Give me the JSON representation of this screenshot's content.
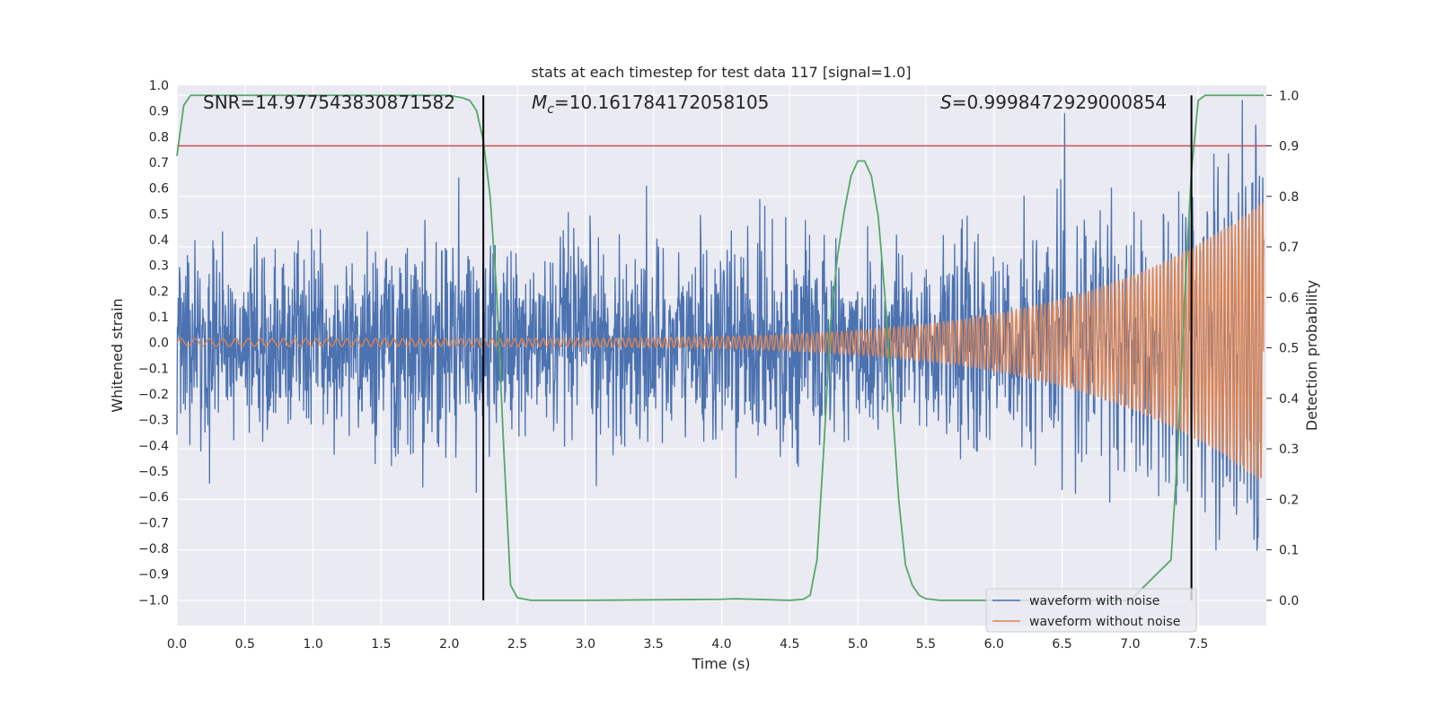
{
  "chart_data": {
    "type": "line",
    "title": "stats at each timestep for test data 117 [signal=1.0]",
    "xlabel": "Time (s)",
    "ylabel": "Whitened strain",
    "y2label": "Detection probability",
    "xlim": [
      0.0,
      8.0
    ],
    "ylim": [
      -1.1,
      1.0
    ],
    "y2lim": [
      -0.05,
      1.02
    ],
    "x_ticks": [
      "0.0",
      "0.5",
      "1.0",
      "1.5",
      "2.0",
      "2.5",
      "3.0",
      "3.5",
      "4.0",
      "4.5",
      "5.0",
      "5.5",
      "6.0",
      "6.5",
      "7.0",
      "7.5"
    ],
    "y_ticks": [
      "1.0",
      "0.9",
      "0.8",
      "0.7",
      "0.6",
      "0.5",
      "0.4",
      "0.3",
      "0.2",
      "0.1",
      "0.0",
      "−0.1",
      "−0.2",
      "−0.3",
      "−0.4",
      "−0.5",
      "−0.6",
      "−0.7",
      "−0.8",
      "−0.9",
      "−1.0"
    ],
    "y2_ticks": [
      "1.0",
      "0.9",
      "0.8",
      "0.7",
      "0.6",
      "0.5",
      "0.4",
      "0.3",
      "0.2",
      "0.1",
      "0.0"
    ],
    "annotations": {
      "snr": "SNR=14.977543830871582",
      "mc_symbol": "M",
      "mc_sub": "c",
      "mc_value": "=10.161784172058105",
      "s_symbol": "S",
      "s_value": "=0.9998472929000854"
    },
    "threshold_y2": 0.9,
    "vlines_x": [
      2.25,
      7.45
    ],
    "series": [
      {
        "name": "waveform with noise",
        "color": "#4c72b0",
        "kind": "noise",
        "amplitude_envelope": 0.95
      },
      {
        "name": "waveform without noise",
        "color": "#dd8452",
        "kind": "chirp",
        "start_amplitude": 0.015,
        "end_amplitude": 0.55,
        "start_freq_hz": 9,
        "end_freq_hz": 40
      },
      {
        "name": "Detection probability",
        "color": "#55a868",
        "axis": "right",
        "x": [
          0.0,
          0.05,
          0.1,
          0.15,
          0.5,
          1.0,
          1.5,
          2.0,
          2.1,
          2.15,
          2.2,
          2.25,
          2.3,
          2.35,
          2.4,
          2.45,
          2.5,
          2.6,
          3.0,
          3.5,
          4.0,
          4.1,
          4.5,
          4.6,
          4.65,
          4.7,
          4.75,
          4.8,
          4.85,
          4.9,
          4.95,
          5.0,
          5.05,
          5.1,
          5.15,
          5.2,
          5.25,
          5.3,
          5.35,
          5.4,
          5.45,
          5.5,
          5.6,
          5.7,
          5.8,
          6.0,
          6.5,
          7.0,
          7.3,
          7.35,
          7.4,
          7.45,
          7.5,
          7.55,
          7.6,
          8.0
        ],
        "y": [
          0.88,
          0.98,
          1.0,
          1.0,
          1.0,
          1.0,
          1.0,
          1.0,
          0.995,
          0.99,
          0.97,
          0.91,
          0.8,
          0.6,
          0.3,
          0.03,
          0.005,
          0.0,
          0.0,
          0.001,
          0.002,
          0.003,
          0.0,
          0.002,
          0.01,
          0.08,
          0.3,
          0.55,
          0.68,
          0.77,
          0.84,
          0.87,
          0.87,
          0.84,
          0.76,
          0.6,
          0.4,
          0.2,
          0.07,
          0.03,
          0.01,
          0.003,
          0.0,
          0.0,
          0.0,
          0.0,
          0.0,
          0.0,
          0.08,
          0.3,
          0.6,
          0.85,
          0.99,
          1.0,
          1.0,
          1.0
        ]
      }
    ],
    "legend": {
      "placement": "lower-right",
      "entries": [
        "waveform with noise",
        "waveform without noise"
      ]
    },
    "grid": true,
    "colors": {
      "background": "#eaeaf2",
      "grid": "#ffffff",
      "threshold": "#c44e52",
      "vline": "#000000"
    }
  }
}
